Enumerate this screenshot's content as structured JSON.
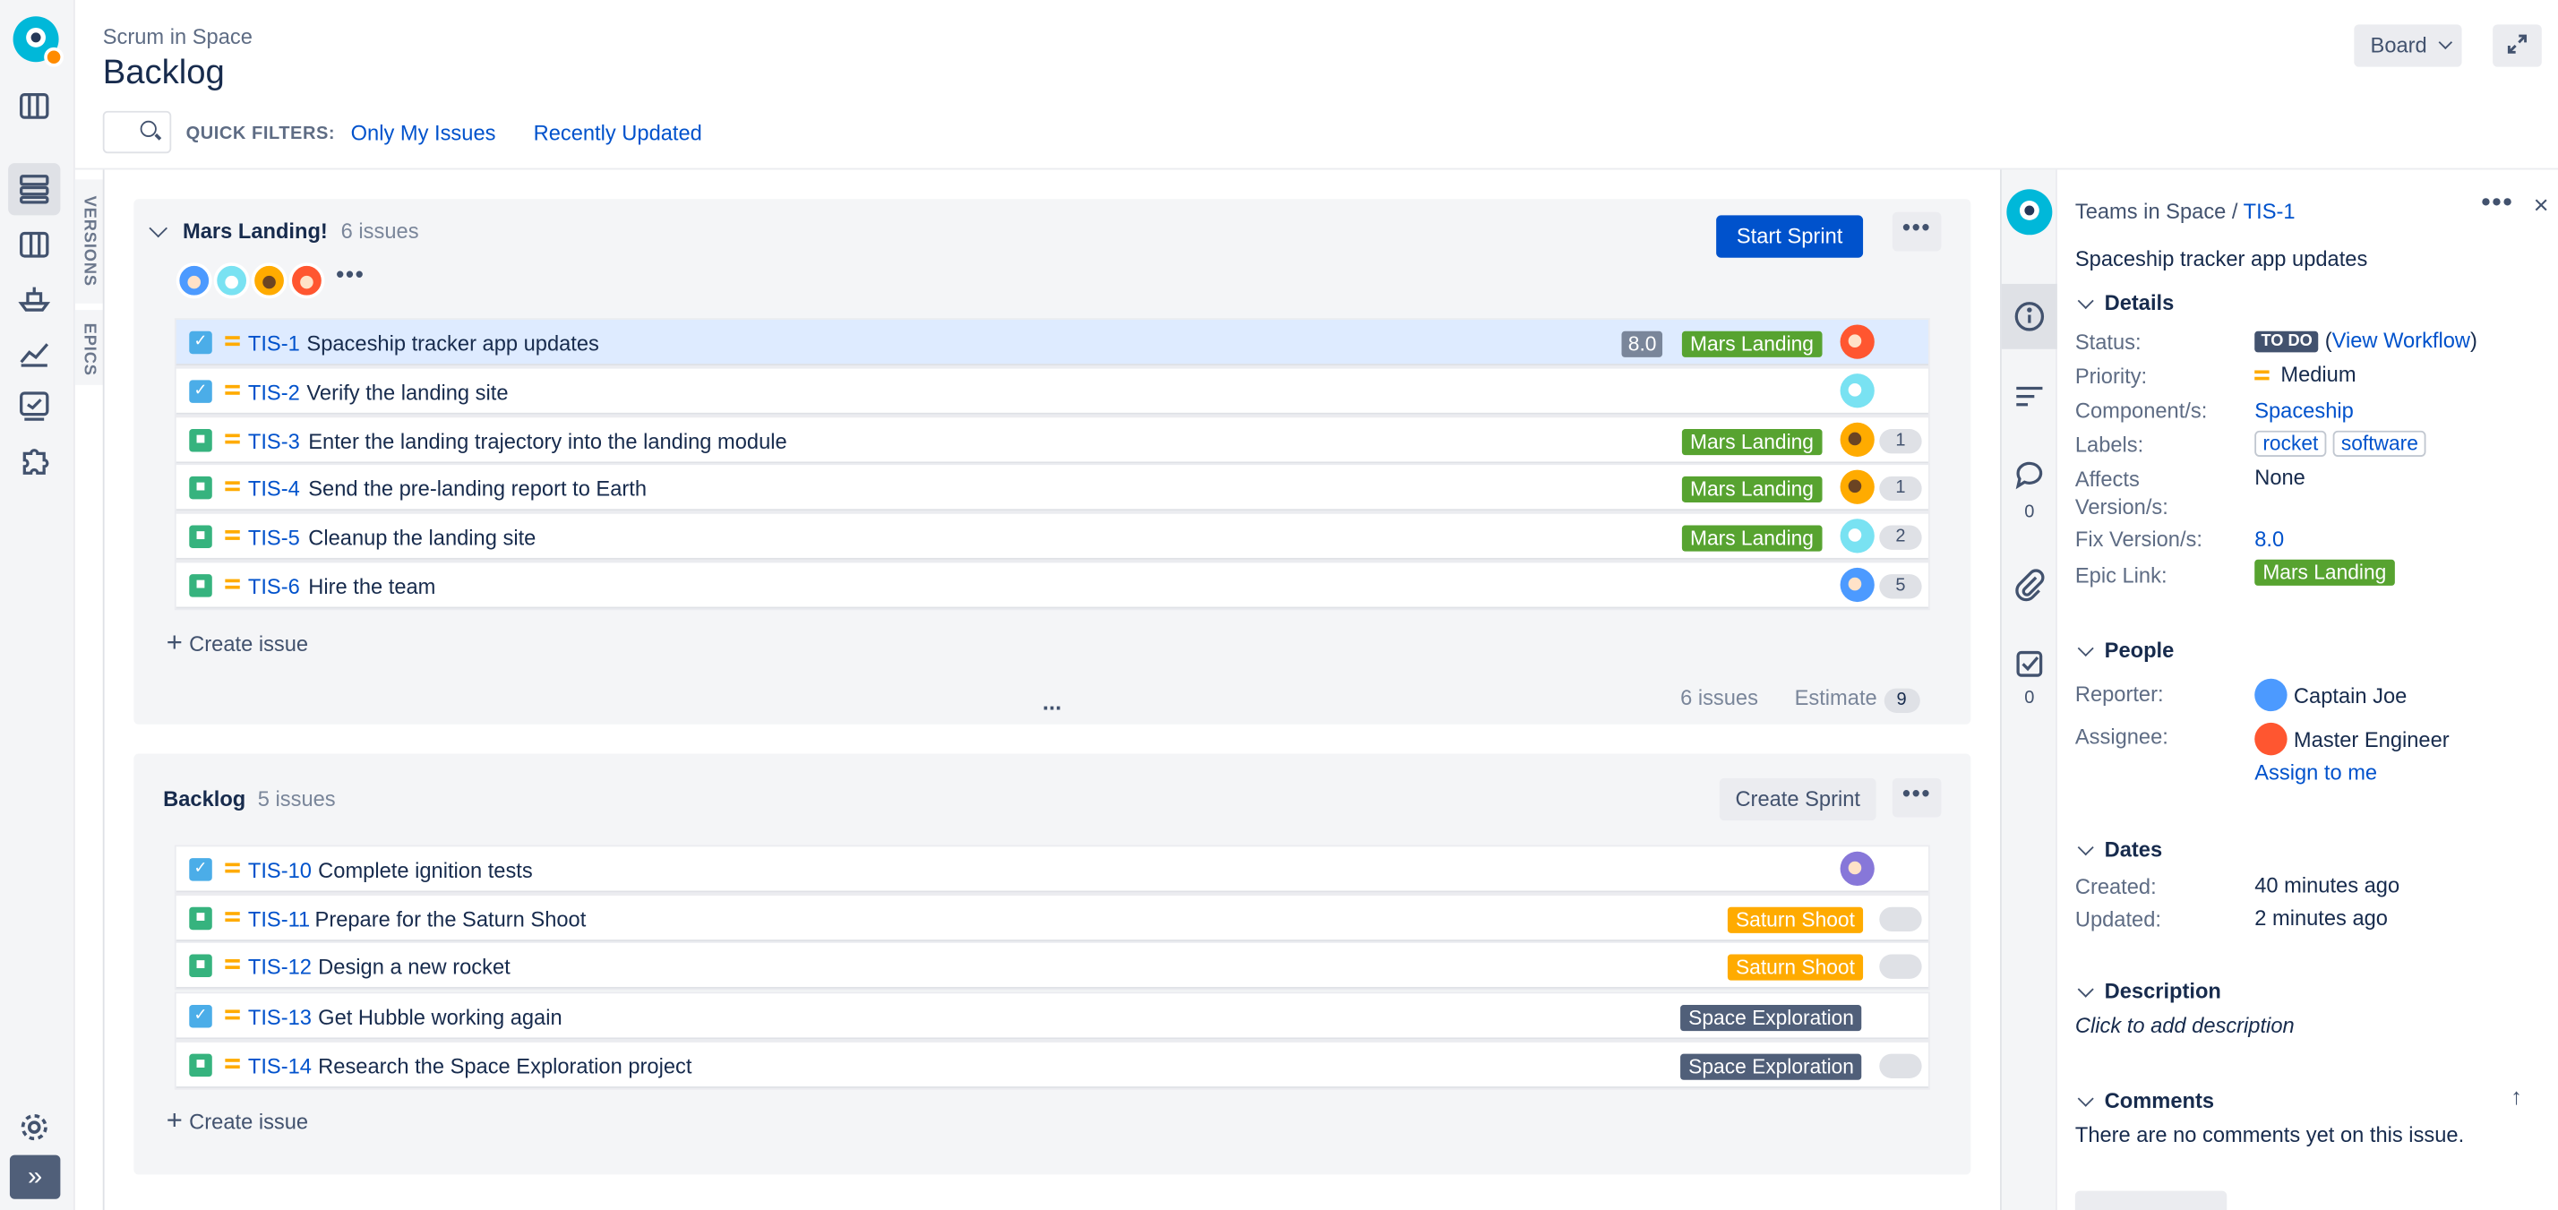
{
  "header": {
    "breadcrumb": "Scrum in Space",
    "title": "Backlog",
    "board_label": "Board",
    "quick_filters_label": "QUICK FILTERS:",
    "quick_filters": [
      "Only My Issues",
      "Recently Updated"
    ]
  },
  "side_tabs": [
    "VERSIONS",
    "EPICS"
  ],
  "sprint": {
    "name": "Mars Landing!",
    "count": "6 issues",
    "start_label": "Start Sprint",
    "more": "•••",
    "issues": [
      {
        "key": "TIS-1",
        "summary": "Spaceship tracker app updates",
        "type": "task",
        "version": "8.0",
        "epic": "Mars Landing",
        "estimate": ""
      },
      {
        "key": "TIS-2",
        "summary": "Verify the landing site",
        "type": "task",
        "version": "",
        "epic": "",
        "estimate": ""
      },
      {
        "key": "TIS-3",
        "summary": "Enter the landing trajectory into the landing module",
        "type": "story",
        "version": "",
        "epic": "Mars Landing",
        "estimate": "1"
      },
      {
        "key": "TIS-4",
        "summary": "Send the pre-landing report to Earth",
        "type": "story",
        "version": "",
        "epic": "Mars Landing",
        "estimate": "1"
      },
      {
        "key": "TIS-5",
        "summary": "Cleanup the landing site",
        "type": "story",
        "version": "",
        "epic": "Mars Landing",
        "estimate": "2"
      },
      {
        "key": "TIS-6",
        "summary": "Hire the team",
        "type": "story",
        "version": "",
        "epic": "",
        "estimate": "5"
      }
    ],
    "create_label": "Create issue",
    "footer_count": "6 issues",
    "footer_estimate_label": "Estimate",
    "footer_estimate": "9",
    "divider": "..."
  },
  "backlog": {
    "name": "Backlog",
    "count": "5 issues",
    "create_sprint_label": "Create Sprint",
    "more": "•••",
    "issues": [
      {
        "key": "TIS-10",
        "summary": "Complete ignition tests",
        "type": "task",
        "epic": ""
      },
      {
        "key": "TIS-11",
        "summary": "Prepare for the Saturn Shoot",
        "type": "story",
        "epic": "Saturn Shoot"
      },
      {
        "key": "TIS-12",
        "summary": "Design a new rocket",
        "type": "story",
        "epic": "Saturn Shoot"
      },
      {
        "key": "TIS-13",
        "summary": "Get Hubble working again",
        "type": "task",
        "epic": "Space Exploration"
      },
      {
        "key": "TIS-14",
        "summary": "Research the Space Exploration project",
        "type": "story",
        "epic": "Space Exploration"
      }
    ],
    "create_label": "Create issue"
  },
  "detail": {
    "project": "Teams in Space",
    "separator": " / ",
    "key": "TIS-1",
    "summary": "Spaceship tracker app updates",
    "more": "•••",
    "close": "×",
    "comments_count": "0",
    "checklist_count": "0",
    "sections": {
      "details": "Details",
      "people": "People",
      "dates": "Dates",
      "description": "Description",
      "comments": "Comments"
    },
    "fields": {
      "status_label": "Status:",
      "status_value": "TO DO",
      "status_link": "View Workflow",
      "priority_label": "Priority:",
      "priority_value": "Medium",
      "component_label": "Component/s:",
      "component_value": "Spaceship",
      "labels_label": "Labels:",
      "labels": [
        "rocket",
        "software"
      ],
      "affects_label_1": "Affects",
      "affects_label_2": "Version/s:",
      "affects_value": "None",
      "fix_label": "Fix Version/s:",
      "fix_value": "8.0",
      "epic_label": "Epic Link:",
      "epic_value": "Mars Landing"
    },
    "people": {
      "reporter_label": "Reporter:",
      "reporter": "Captain Joe",
      "assignee_label": "Assignee:",
      "assignee": "Master Engineer",
      "assign_me": "Assign to me"
    },
    "dates": {
      "created_label": "Created:",
      "created": "40 minutes ago",
      "updated_label": "Updated:",
      "updated": "2 minutes ago"
    },
    "description_placeholder": "Click to add description",
    "no_comments": "There are no comments yet on this issue."
  },
  "colors": {
    "primary": "#0052cc",
    "epic_mars": "#57a330",
    "epic_saturn": "#ffab00",
    "epic_space": "#505f79",
    "selected_row": "#deebff"
  }
}
